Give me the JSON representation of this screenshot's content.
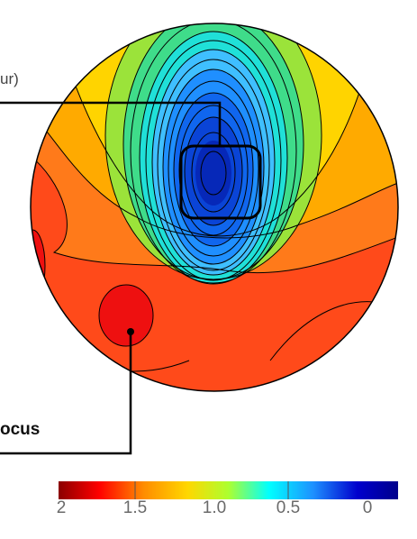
{
  "labels": {
    "top_fragment": "ur)",
    "bottom_fragment": "ocus"
  },
  "colorbar": {
    "tick_labels": [
      "2",
      "1.5",
      "1.0",
      "0.5",
      "0"
    ],
    "tick_values": [
      2,
      1.5,
      1.0,
      0.5,
      0
    ],
    "colormap": [
      "#8b0000",
      "#ff0000",
      "#ff8c00",
      "#ffd700",
      "#adff2f",
      "#00ffff",
      "#1e90ff",
      "#0000cd",
      "#00008b"
    ]
  },
  "colors": {
    "outline": "#000000",
    "contour_line": "#000000"
  }
}
